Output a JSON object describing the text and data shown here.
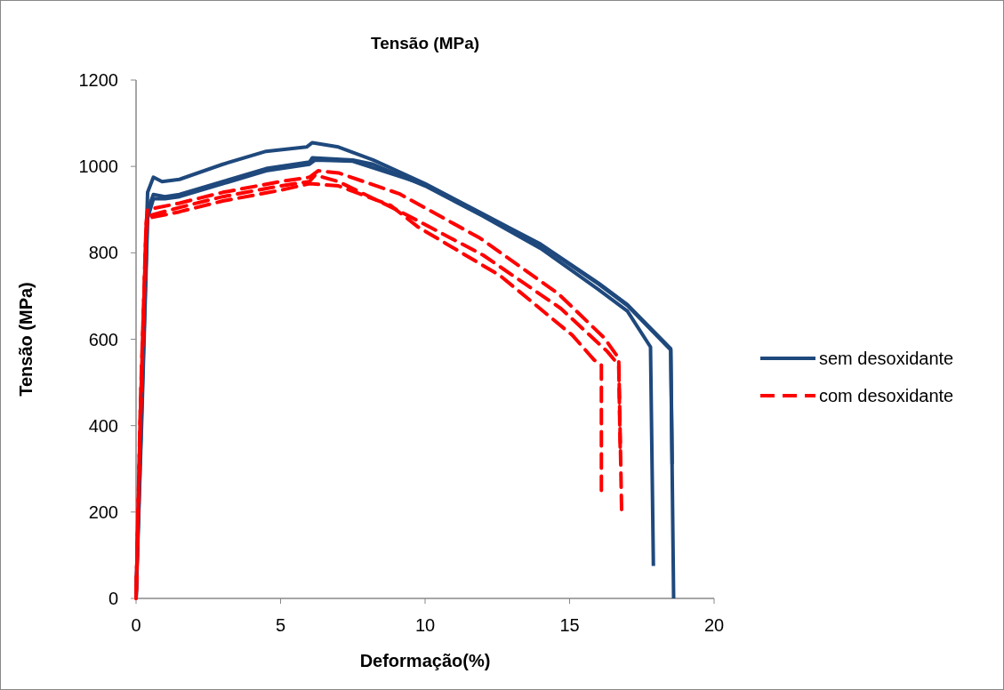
{
  "chart_data": {
    "type": "line",
    "title": "Tensão (MPa)",
    "xlabel": "Deformação(%)",
    "ylabel": "Tensão (MPa)",
    "xlim": [
      0,
      20
    ],
    "ylim": [
      0,
      1200
    ],
    "xticks": [
      0,
      5,
      10,
      15,
      20
    ],
    "yticks": [
      0,
      200,
      400,
      600,
      800,
      1000,
      1200
    ],
    "grid": false,
    "legend": "right",
    "series": [
      {
        "name": "sem desoxidante",
        "color": "#1f497d",
        "line_style": "solid",
        "x": [
          0,
          0.2,
          0.4,
          0.6,
          0.9,
          1.5,
          3,
          4.5,
          5.9,
          6.1,
          7,
          8.2,
          10,
          12,
          14,
          16,
          17,
          18.5,
          18.6
        ],
        "values": [
          0,
          500,
          940,
          975,
          965,
          970,
          1005,
          1035,
          1045,
          1055,
          1045,
          1015,
          960,
          890,
          820,
          730,
          680,
          578,
          0
        ]
      },
      {
        "color": "#1f497d",
        "line_style": "solid",
        "x": [
          0,
          0.2,
          0.4,
          0.6,
          1,
          1.5,
          3,
          4.5,
          6,
          6.1,
          7.5,
          8.2,
          10,
          12,
          14,
          16,
          17,
          17.8,
          17.9
        ],
        "values": [
          0,
          450,
          900,
          935,
          930,
          935,
          965,
          995,
          1010,
          1020,
          1015,
          1005,
          955,
          885,
          810,
          715,
          665,
          582,
          75
        ]
      },
      {
        "color": "#1f497d",
        "line_style": "solid",
        "x": [
          0,
          0.2,
          0.4,
          0.6,
          1,
          1.5,
          3,
          4.5,
          6,
          6.2,
          7.5,
          10,
          12,
          14,
          16,
          17,
          18.5,
          18.55
        ],
        "values": [
          0,
          420,
          880,
          925,
          925,
          930,
          960,
          990,
          1005,
          1015,
          1012,
          958,
          888,
          818,
          728,
          678,
          575,
          311
        ]
      },
      {
        "name": "com desoxidante",
        "color": "#ff0000",
        "line_style": "dashed",
        "x": [
          0,
          0.15,
          0.35,
          0.4,
          1.5,
          3,
          5,
          6,
          6.3,
          7,
          9.1,
          11.9,
          14.6,
          16.2,
          16.7,
          16.8
        ],
        "values": [
          0,
          450,
          870,
          900,
          915,
          940,
          965,
          975,
          990,
          985,
          937,
          834,
          706,
          603,
          556,
          206
        ]
      },
      {
        "color": "#ff0000",
        "line_style": "dashed",
        "x": [
          0,
          0.15,
          0.35,
          0.4,
          1.5,
          3,
          5,
          6,
          6.2,
          7,
          9.1,
          12,
          14.7,
          16.3,
          16.7,
          16.75
        ],
        "values": [
          0,
          430,
          860,
          885,
          905,
          930,
          955,
          965,
          980,
          965,
          897,
          795,
          671,
          572,
          540,
          350
        ]
      },
      {
        "color": "#ff0000",
        "line_style": "dashed",
        "x": [
          0,
          0.15,
          0.35,
          0.4,
          1.5,
          3,
          5,
          6,
          7,
          8.8,
          9.75,
          12.6,
          15.1,
          15.85,
          16.1,
          16.1
        ],
        "values": [
          0,
          400,
          850,
          880,
          895,
          920,
          945,
          960,
          955,
          910,
          860,
          747,
          609,
          552,
          540,
          250
        ]
      }
    ]
  }
}
